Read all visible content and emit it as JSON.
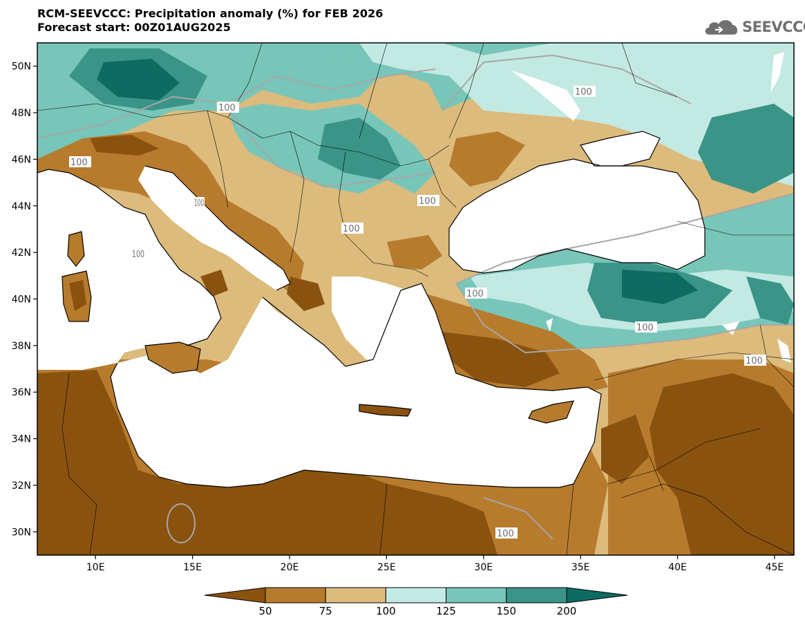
{
  "header": {
    "title": "RCM-SEEVCCC: Precipitation anomaly (%) for FEB 2026",
    "subtitle": "Forecast start: 00Z01AUG2025"
  },
  "logo": {
    "text": "SEEVCCC",
    "icon": "cloud-icon"
  },
  "map": {
    "lon_range": [
      7,
      46
    ],
    "lat_range": [
      29,
      51
    ],
    "x_ticks": [
      "10E",
      "15E",
      "20E",
      "25E",
      "30E",
      "35E",
      "40E",
      "45E"
    ],
    "y_ticks": [
      "50N",
      "48N",
      "46N",
      "44N",
      "42N",
      "40N",
      "38N",
      "36N",
      "34N",
      "32N",
      "30N"
    ],
    "contour_labels": [
      "100",
      "100",
      "100",
      "100",
      "100",
      "100",
      "100",
      "100",
      "100",
      "100",
      "100"
    ],
    "colors": {
      "sea": "#ffffff",
      "coast": "#000000",
      "contour_line": "#a7a7a7"
    }
  },
  "colorbar": {
    "levels": [
      "50",
      "75",
      "100",
      "125",
      "150",
      "200"
    ],
    "bins": [
      {
        "color": "#8a520f"
      },
      {
        "color": "#b77b2d"
      },
      {
        "color": "#dcbb7c"
      },
      {
        "color": "#c3e9e3"
      },
      {
        "color": "#77c6b9"
      },
      {
        "color": "#3a9488"
      },
      {
        "color": "#0d6b62"
      }
    ]
  }
}
